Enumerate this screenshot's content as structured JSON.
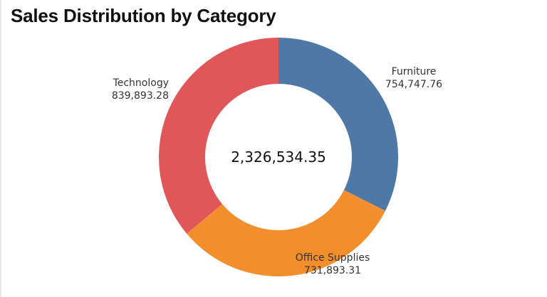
{
  "header": {
    "title": "Sales Distribution by Category"
  },
  "colors": {
    "furniture": "#4e79a7",
    "office_supplies": "#f28e2b",
    "technology": "#e15759",
    "background": "#ffffff",
    "text": "#333333"
  },
  "labels": {
    "technology": {
      "name": "Technology",
      "value": "839,893.28"
    },
    "furniture": {
      "name": "Furniture",
      "value": "754,747.76"
    },
    "office_supplies": {
      "name": "Office Supplies",
      "value": "731,893.31"
    }
  },
  "center": {
    "total": "2,326,534.35"
  },
  "chart_data": {
    "type": "pie",
    "variant": "donut",
    "title": "Sales Distribution by Category",
    "categories": [
      "Furniture",
      "Office Supplies",
      "Technology"
    ],
    "values": [
      754747.76,
      731893.31,
      839893.28
    ],
    "colors": [
      "#4e79a7",
      "#f28e2b",
      "#e15759"
    ],
    "total": 2326534.35,
    "center_label": "2,326,534.35",
    "start_angle": "12 o'clock",
    "direction": "clockwise",
    "legend": "none (direct labels)"
  }
}
